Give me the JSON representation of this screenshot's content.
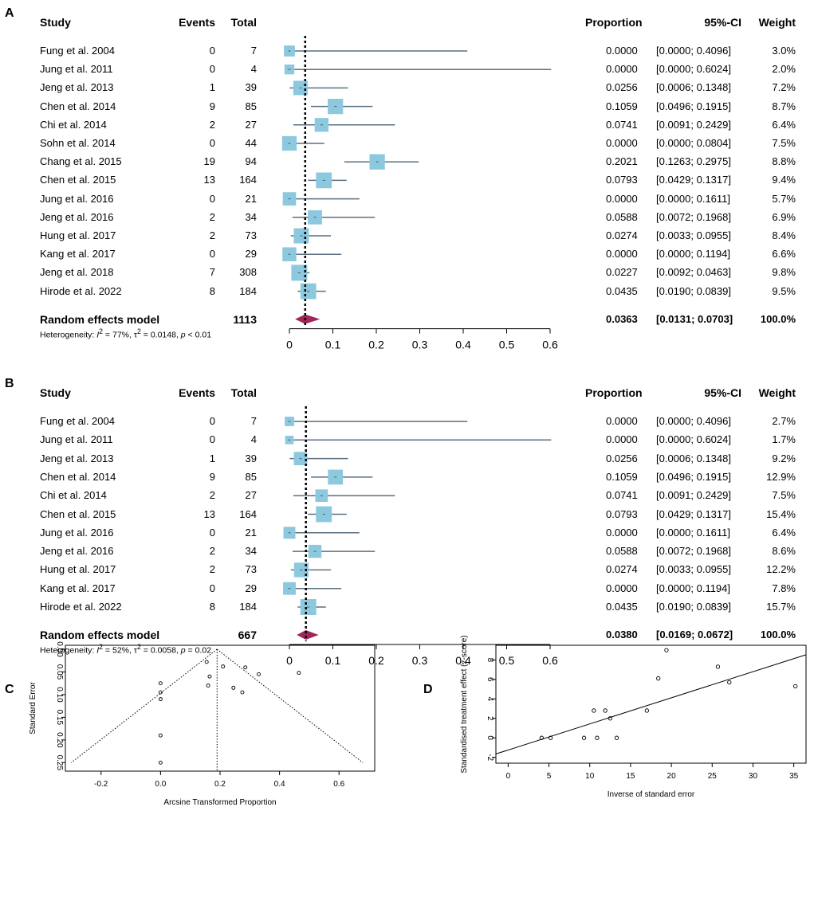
{
  "chart_data": [
    {
      "panel": "A",
      "type": "forest",
      "headers": {
        "study": "Study",
        "events": "Events",
        "total": "Total",
        "proportion": "Proportion",
        "ci": "95%-CI",
        "weight": "Weight"
      },
      "studies": [
        {
          "study": "Fung et al. 2004",
          "events": "0",
          "total": "7",
          "p": 0.0,
          "lo": 0.0,
          "hi": 0.4096,
          "w": 3.0,
          "prop": "0.0000",
          "ci": "[0.0000; 0.4096]",
          "weight": "3.0%"
        },
        {
          "study": "Jung et al. 2011",
          "events": "0",
          "total": "4",
          "p": 0.0,
          "lo": 0.0,
          "hi": 0.6024,
          "w": 2.0,
          "prop": "0.0000",
          "ci": "[0.0000; 0.6024]",
          "weight": "2.0%"
        },
        {
          "study": "Jeng et al. 2013",
          "events": "1",
          "total": "39",
          "p": 0.0256,
          "lo": 0.0006,
          "hi": 0.1348,
          "w": 7.2,
          "prop": "0.0256",
          "ci": "[0.0006; 0.1348]",
          "weight": "7.2%"
        },
        {
          "study": "Chen et al. 2014",
          "events": "9",
          "total": "85",
          "p": 0.1059,
          "lo": 0.0496,
          "hi": 0.1915,
          "w": 8.7,
          "prop": "0.1059",
          "ci": "[0.0496; 0.1915]",
          "weight": "8.7%"
        },
        {
          "study": "Chi et al. 2014",
          "events": "2",
          "total": "27",
          "p": 0.0741,
          "lo": 0.0091,
          "hi": 0.2429,
          "w": 6.4,
          "prop": "0.0741",
          "ci": "[0.0091; 0.2429]",
          "weight": "6.4%"
        },
        {
          "study": "Sohn et al. 2014",
          "events": "0",
          "total": "44",
          "p": 0.0,
          "lo": 0.0,
          "hi": 0.0804,
          "w": 7.5,
          "prop": "0.0000",
          "ci": "[0.0000; 0.0804]",
          "weight": "7.5%"
        },
        {
          "study": "Chang et al.  2015",
          "events": "19",
          "total": "94",
          "p": 0.2021,
          "lo": 0.1263,
          "hi": 0.2975,
          "w": 8.8,
          "prop": "0.2021",
          "ci": "[0.1263; 0.2975]",
          "weight": "8.8%"
        },
        {
          "study": "Chen et al. 2015",
          "events": "13",
          "total": "164",
          "p": 0.0793,
          "lo": 0.0429,
          "hi": 0.1317,
          "w": 9.4,
          "prop": "0.0793",
          "ci": "[0.0429; 0.1317]",
          "weight": "9.4%"
        },
        {
          "study": "Jung et al. 2016",
          "events": "0",
          "total": "21",
          "p": 0.0,
          "lo": 0.0,
          "hi": 0.1611,
          "w": 5.7,
          "prop": "0.0000",
          "ci": "[0.0000; 0.1611]",
          "weight": "5.7%"
        },
        {
          "study": "Jeng et al. 2016",
          "events": "2",
          "total": "34",
          "p": 0.0588,
          "lo": 0.0072,
          "hi": 0.1968,
          "w": 6.9,
          "prop": "0.0588",
          "ci": "[0.0072; 0.1968]",
          "weight": "6.9%"
        },
        {
          "study": "Hung et al. 2017",
          "events": "2",
          "total": "73",
          "p": 0.0274,
          "lo": 0.0033,
          "hi": 0.0955,
          "w": 8.4,
          "prop": "0.0274",
          "ci": "[0.0033; 0.0955]",
          "weight": "8.4%"
        },
        {
          "study": "Kang et al. 2017",
          "events": "0",
          "total": "29",
          "p": 0.0,
          "lo": 0.0,
          "hi": 0.1194,
          "w": 6.6,
          "prop": "0.0000",
          "ci": "[0.0000; 0.1194]",
          "weight": "6.6%"
        },
        {
          "study": "Jeng et al. 2018",
          "events": "7",
          "total": "308",
          "p": 0.0227,
          "lo": 0.0092,
          "hi": 0.0463,
          "w": 9.8,
          "prop": "0.0227",
          "ci": "[0.0092; 0.0463]",
          "weight": "9.8%"
        },
        {
          "study": "Hirode et al.  2022",
          "events": "8",
          "total": "184",
          "p": 0.0435,
          "lo": 0.019,
          "hi": 0.0839,
          "w": 9.5,
          "prop": "0.0435",
          "ci": "[0.0190; 0.0839]",
          "weight": "9.5%"
        }
      ],
      "pooled": {
        "label": "Random effects model",
        "total": "1113",
        "p": 0.0363,
        "lo": 0.0131,
        "hi": 0.0703,
        "prop": "0.0363",
        "ci": "[0.0131; 0.0703]",
        "weight": "100.0%"
      },
      "heterogeneity": {
        "prefix": "Heterogeneity: ",
        "i2": "77%",
        "tau2": "0.0148",
        "p": "< 0.01"
      },
      "xlim": [
        0,
        0.6
      ],
      "ticks": [
        "0",
        "0.1",
        "0.2",
        "0.3",
        "0.4",
        "0.5",
        "0.6"
      ]
    },
    {
      "panel": "B",
      "type": "forest",
      "headers": {
        "study": "Study",
        "events": "Events",
        "total": "Total",
        "proportion": "Proportion",
        "ci": "95%-CI",
        "weight": "Weight"
      },
      "studies": [
        {
          "study": "Fung et al. 2004",
          "events": "0",
          "total": "7",
          "p": 0.0,
          "lo": 0.0,
          "hi": 0.4096,
          "w": 2.7,
          "prop": "0.0000",
          "ci": "[0.0000; 0.4096]",
          "weight": "2.7%"
        },
        {
          "study": "Jung et al. 2011",
          "events": "0",
          "total": "4",
          "p": 0.0,
          "lo": 0.0,
          "hi": 0.6024,
          "w": 1.7,
          "prop": "0.0000",
          "ci": "[0.0000; 0.6024]",
          "weight": "1.7%"
        },
        {
          "study": "Jeng et al. 2013",
          "events": "1",
          "total": "39",
          "p": 0.0256,
          "lo": 0.0006,
          "hi": 0.1348,
          "w": 9.2,
          "prop": "0.0256",
          "ci": "[0.0006; 0.1348]",
          "weight": "9.2%"
        },
        {
          "study": "Chen et al. 2014",
          "events": "9",
          "total": "85",
          "p": 0.1059,
          "lo": 0.0496,
          "hi": 0.1915,
          "w": 12.9,
          "prop": "0.1059",
          "ci": "[0.0496; 0.1915]",
          "weight": "12.9%"
        },
        {
          "study": "Chi et al. 2014",
          "events": "2",
          "total": "27",
          "p": 0.0741,
          "lo": 0.0091,
          "hi": 0.2429,
          "w": 7.5,
          "prop": "0.0741",
          "ci": "[0.0091; 0.2429]",
          "weight": "7.5%"
        },
        {
          "study": "Chen et al. 2015",
          "events": "13",
          "total": "164",
          "p": 0.0793,
          "lo": 0.0429,
          "hi": 0.1317,
          "w": 15.4,
          "prop": "0.0793",
          "ci": "[0.0429; 0.1317]",
          "weight": "15.4%"
        },
        {
          "study": "Jung et al. 2016",
          "events": "0",
          "total": "21",
          "p": 0.0,
          "lo": 0.0,
          "hi": 0.1611,
          "w": 6.4,
          "prop": "0.0000",
          "ci": "[0.0000; 0.1611]",
          "weight": "6.4%"
        },
        {
          "study": "Jeng et al. 2016",
          "events": "2",
          "total": "34",
          "p": 0.0588,
          "lo": 0.0072,
          "hi": 0.1968,
          "w": 8.6,
          "prop": "0.0588",
          "ci": "[0.0072; 0.1968]",
          "weight": "8.6%"
        },
        {
          "study": "Hung et al. 2017",
          "events": "2",
          "total": "73",
          "p": 0.0274,
          "lo": 0.0033,
          "hi": 0.0955,
          "w": 12.2,
          "prop": "0.0274",
          "ci": "[0.0033; 0.0955]",
          "weight": "12.2%"
        },
        {
          "study": "Kang et al. 2017",
          "events": "0",
          "total": "29",
          "p": 0.0,
          "lo": 0.0,
          "hi": 0.1194,
          "w": 7.8,
          "prop": "0.0000",
          "ci": "[0.0000; 0.1194]",
          "weight": "7.8%"
        },
        {
          "study": "Hirode et al.  2022",
          "events": "8",
          "total": "184",
          "p": 0.0435,
          "lo": 0.019,
          "hi": 0.0839,
          "w": 15.7,
          "prop": "0.0435",
          "ci": "[0.0190; 0.0839]",
          "weight": "15.7%"
        }
      ],
      "pooled": {
        "label": "Random effects model",
        "total": "667",
        "p": 0.038,
        "lo": 0.0169,
        "hi": 0.0672,
        "prop": "0.0380",
        "ci": "[0.0169; 0.0672]",
        "weight": "100.0%"
      },
      "heterogeneity": {
        "prefix": "Heterogeneity: ",
        "i2": "52%",
        "tau2": "0.0058",
        "p": "= 0.02"
      },
      "xlim": [
        0,
        0.6
      ],
      "ticks": [
        "0",
        "0.1",
        "0.2",
        "0.3",
        "0.4",
        "0.5",
        "0.6"
      ]
    },
    {
      "panel": "C",
      "type": "scatter",
      "subtype": "funnel",
      "xlabel": "Arcsine Transformed Proportion",
      "ylabel": "Standard Error",
      "xlim": [
        -0.32,
        0.72
      ],
      "ylim": [
        0,
        0.26
      ],
      "y_reversed": true,
      "xticks": [
        -0.2,
        0,
        0.2,
        0.4,
        0.6
      ],
      "xtick_labels": [
        "-0.2",
        "0.0",
        "0.2",
        "0.4",
        "0.6"
      ],
      "yticks": [
        0,
        0.05,
        0.1,
        0.15,
        0.2,
        0.25
      ],
      "ytick_labels": [
        "0.00",
        "0.05",
        "0.10",
        "0.15",
        "0.20",
        "0.25"
      ],
      "center": 0.19,
      "points": [
        {
          "x": 0.0,
          "y": 0.075
        },
        {
          "x": 0.0,
          "y": 0.095
        },
        {
          "x": 0.0,
          "y": 0.11
        },
        {
          "x": 0.0,
          "y": 0.19
        },
        {
          "x": 0.0,
          "y": 0.25
        },
        {
          "x": 0.155,
          "y": 0.028
        },
        {
          "x": 0.165,
          "y": 0.06
        },
        {
          "x": 0.16,
          "y": 0.08
        },
        {
          "x": 0.21,
          "y": 0.038
        },
        {
          "x": 0.245,
          "y": 0.085
        },
        {
          "x": 0.275,
          "y": 0.095
        },
        {
          "x": 0.285,
          "y": 0.04
        },
        {
          "x": 0.33,
          "y": 0.055
        },
        {
          "x": 0.465,
          "y": 0.052
        }
      ]
    },
    {
      "panel": "D",
      "type": "scatter",
      "subtype": "radial",
      "xlabel": "Inverse of standard error",
      "ylabel": "Standardised treatment effect (z-score)",
      "xlim": [
        -1.5,
        36.5
      ],
      "ylim": [
        -2.6,
        9.5
      ],
      "xticks": [
        0,
        5,
        10,
        15,
        20,
        25,
        30,
        35
      ],
      "xtick_labels": [
        "0",
        "5",
        "10",
        "15",
        "20",
        "25",
        "30",
        "35"
      ],
      "yticks": [
        -2,
        0,
        2,
        4,
        6,
        8
      ],
      "ytick_labels": [
        "-2",
        "0",
        "2",
        "4",
        "6",
        "8"
      ],
      "regression": {
        "intercept": -1.25,
        "slope": 0.268
      },
      "points": [
        {
          "x": 4.1,
          "y": 0
        },
        {
          "x": 5.2,
          "y": 0
        },
        {
          "x": 9.3,
          "y": 0
        },
        {
          "x": 10.5,
          "y": 2.8
        },
        {
          "x": 10.9,
          "y": 0
        },
        {
          "x": 11.9,
          "y": 2.8
        },
        {
          "x": 12.5,
          "y": 2.0
        },
        {
          "x": 13.3,
          "y": 0
        },
        {
          "x": 17.0,
          "y": 2.8
        },
        {
          "x": 18.4,
          "y": 6.1
        },
        {
          "x": 19.4,
          "y": 9.0
        },
        {
          "x": 25.7,
          "y": 7.3
        },
        {
          "x": 27.1,
          "y": 5.7
        },
        {
          "x": 35.2,
          "y": 5.3
        }
      ]
    }
  ]
}
